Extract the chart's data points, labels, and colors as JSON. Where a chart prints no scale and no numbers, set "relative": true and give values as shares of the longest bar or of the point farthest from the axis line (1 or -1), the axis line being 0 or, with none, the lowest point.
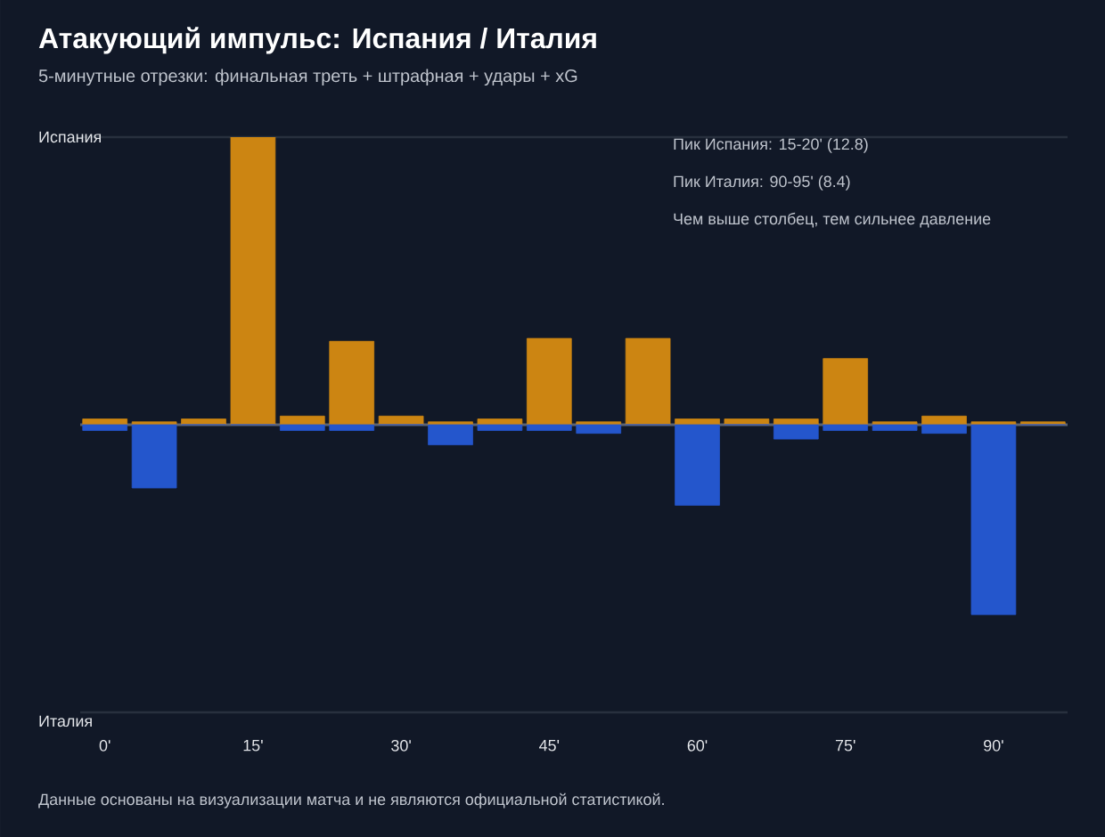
{
  "chart_data": {
    "type": "bar",
    "title": "Атакующий импульс: Испания / Италия",
    "subtitle": "5-минутные отрезки: финальная треть + штрафная + удары + xG",
    "categories": [
      "0'",
      null,
      null,
      "15'",
      null,
      null,
      "30'",
      null,
      null,
      "45'",
      null,
      null,
      "60'",
      null,
      null,
      "75'",
      null,
      null,
      "90'",
      null
    ],
    "relative": true,
    "series": [
      {
        "color": "#cc8512",
        "values": [
          0.02,
          0.01,
          0.02,
          1,
          0.03,
          0.29,
          0.03,
          0.01,
          0.02,
          0.3,
          0.01,
          0.3,
          0.02,
          0.02,
          0.02,
          0.23,
          0.01,
          0.03,
          0.01,
          0.01
        ]
      },
      {
        "color": "#2456cc",
        "values": [
          -0.02,
          -0.22,
          0,
          0,
          -0.02,
          -0.02,
          0,
          -0.07,
          -0.02,
          -0.02,
          -0.03,
          0,
          -0.28,
          0,
          -0.05,
          -0.02,
          -0.02,
          -0.03,
          -0.66,
          0
        ]
      }
    ],
    "ref_lines": [
      {
        "axis": "y",
        "value": 0,
        "color": "#5a6272"
      }
    ],
    "annotations": [
      "Испания",
      "Италия",
      "Пик Испания: 15-20' (12.8)",
      "Пик Италия: 90-95' (8.4)",
      "Чем выше столбец, тем сильнее давление",
      "Данные основаны на визуализации матча и не являются официальной статистикой."
    ]
  }
}
